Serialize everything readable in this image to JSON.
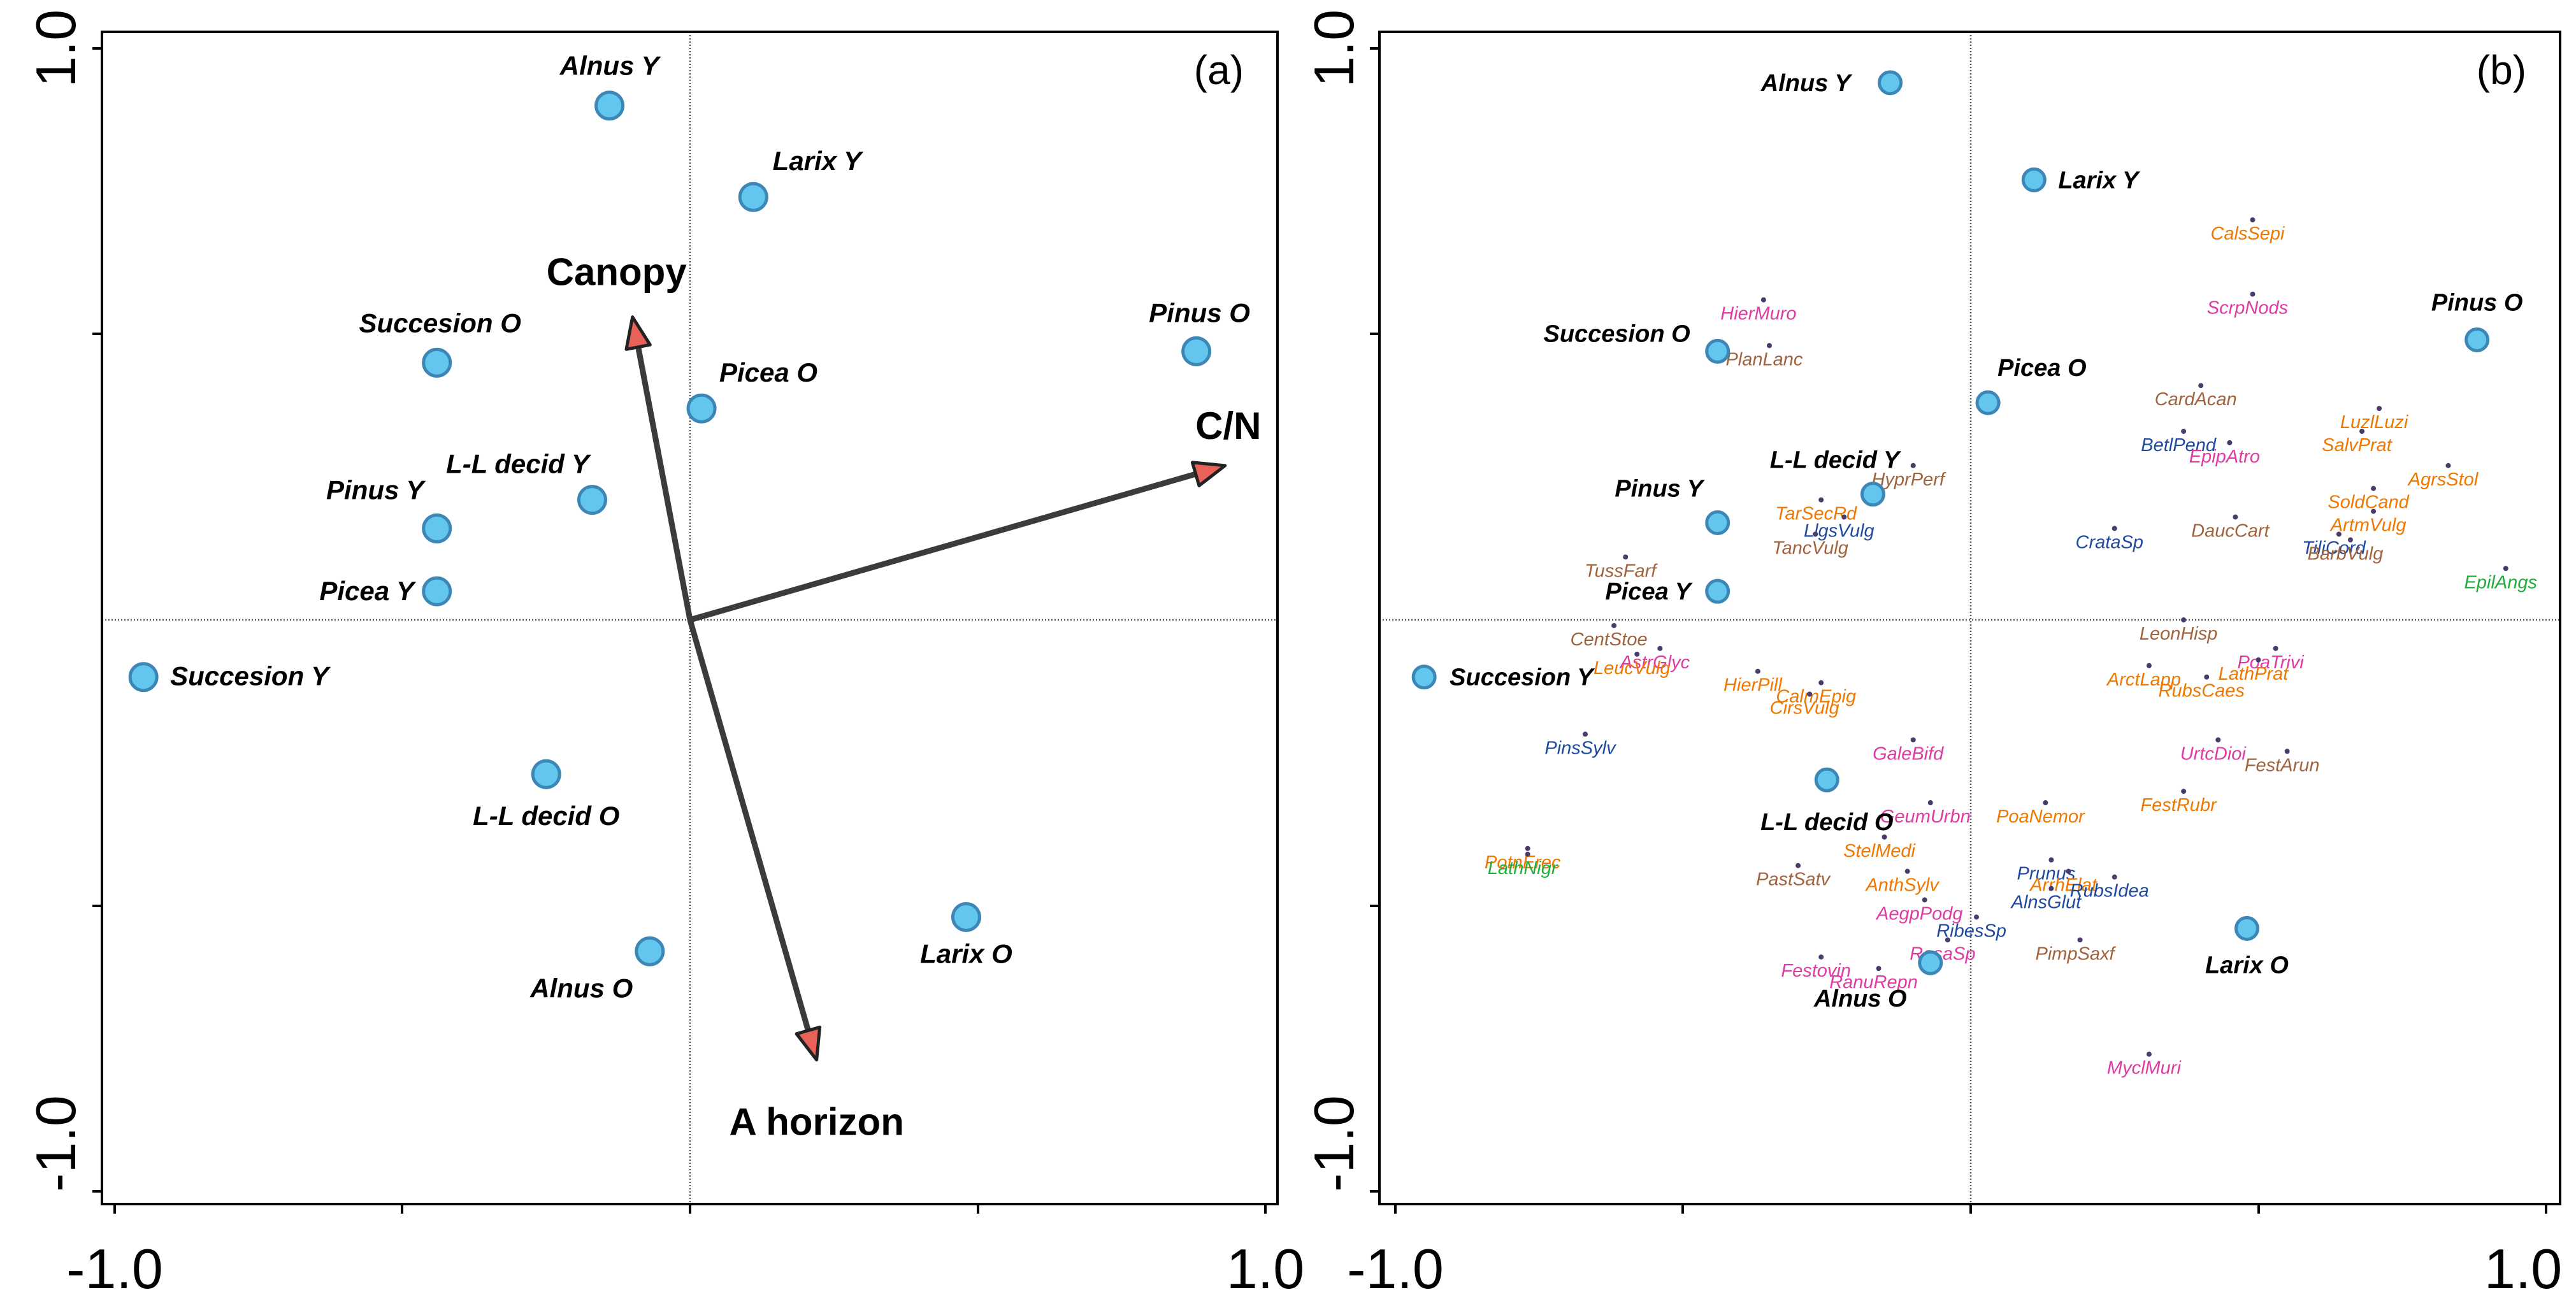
{
  "chart_data": [
    {
      "type": "scatter",
      "panel_label": "(a)",
      "title": "",
      "xlabel": "",
      "ylabel": "",
      "xlim": [
        -1.0,
        1.0
      ],
      "ylim": [
        -1.0,
        1.0
      ],
      "x_tick_labels": [
        {
          "value": -1.0,
          "label": "-1.0"
        },
        {
          "value": 1.0,
          "label": "1.0"
        }
      ],
      "y_tick_labels": [
        {
          "value": 1.0,
          "label": "1.0"
        },
        {
          "value": -1.0,
          "label": "-1.0"
        }
      ],
      "sites": [
        {
          "name": "Alnus Y",
          "x": -0.14,
          "y": 0.9
        },
        {
          "name": "Larix Y",
          "x": 0.11,
          "y": 0.74
        },
        {
          "name": "Succesion O",
          "x": -0.44,
          "y": 0.45
        },
        {
          "name": "Pinus O",
          "x": 0.88,
          "y": 0.47
        },
        {
          "name": "Picea O",
          "x": 0.02,
          "y": 0.37
        },
        {
          "name": "L-L decid Y",
          "x": -0.17,
          "y": 0.21
        },
        {
          "name": "Pinus Y",
          "x": -0.44,
          "y": 0.16
        },
        {
          "name": "Picea Y",
          "x": -0.44,
          "y": 0.05
        },
        {
          "name": "Succesion Y",
          "x": -0.95,
          "y": -0.1
        },
        {
          "name": "L-L decid O",
          "x": -0.25,
          "y": -0.27
        },
        {
          "name": "Alnus O",
          "x": -0.07,
          "y": -0.58
        },
        {
          "name": "Larix O",
          "x": 0.48,
          "y": -0.52
        }
      ],
      "env_vectors": [
        {
          "name": "Canopy",
          "x": -0.1,
          "y": 0.53
        },
        {
          "name": "C/N",
          "x": 0.93,
          "y": 0.27
        },
        {
          "name": "A horizon",
          "x": 0.22,
          "y": -0.77
        }
      ]
    },
    {
      "type": "scatter",
      "panel_label": "(b)",
      "title": "",
      "xlabel": "",
      "ylabel": "",
      "xlim": [
        -1.0,
        1.0
      ],
      "ylim": [
        -1.0,
        1.0
      ],
      "x_tick_labels": [
        {
          "value": -1.0,
          "label": "-1.0"
        },
        {
          "value": 1.0,
          "label": "1.0"
        }
      ],
      "y_tick_labels": [
        {
          "value": 1.0,
          "label": "1.0"
        },
        {
          "value": -1.0,
          "label": "-1.0"
        }
      ],
      "sites": [
        {
          "name": "Alnus Y",
          "x": -0.14,
          "y": 0.94
        },
        {
          "name": "Larix Y",
          "x": 0.11,
          "y": 0.77
        },
        {
          "name": "Succesion O",
          "x": -0.44,
          "y": 0.47
        },
        {
          "name": "Pinus O",
          "x": 0.88,
          "y": 0.49
        },
        {
          "name": "Picea O",
          "x": 0.03,
          "y": 0.38
        },
        {
          "name": "L-L decid Y",
          "x": -0.17,
          "y": 0.22
        },
        {
          "name": "Pinus Y",
          "x": -0.44,
          "y": 0.17
        },
        {
          "name": "Picea Y",
          "x": -0.44,
          "y": 0.05
        },
        {
          "name": "Succesion Y",
          "x": -0.95,
          "y": -0.1
        },
        {
          "name": "L-L decid O",
          "x": -0.25,
          "y": -0.28
        },
        {
          "name": "Alnus O",
          "x": -0.07,
          "y": -0.6
        },
        {
          "name": "Larix O",
          "x": 0.48,
          "y": -0.54
        }
      ],
      "species_colors": {
        "brown": "#a0633d",
        "orange": "#f07800",
        "magenta": "#de3ca2",
        "blue": "#1f4aa0",
        "green": "#1fae3c"
      },
      "species": [
        {
          "name": "CalsSepi",
          "x": 0.49,
          "y": 0.7,
          "color": "orange"
        },
        {
          "name": "HierMuro",
          "x": -0.36,
          "y": 0.56,
          "color": "magenta"
        },
        {
          "name": "ScrpNods",
          "x": 0.49,
          "y": 0.57,
          "color": "magenta"
        },
        {
          "name": "PlanLanc",
          "x": -0.35,
          "y": 0.48,
          "color": "brown"
        },
        {
          "name": "CardAcan",
          "x": 0.4,
          "y": 0.41,
          "color": "brown"
        },
        {
          "name": "LuzlLuzi",
          "x": 0.71,
          "y": 0.37,
          "color": "orange"
        },
        {
          "name": "BetlPend",
          "x": 0.37,
          "y": 0.33,
          "color": "blue"
        },
        {
          "name": "SalvPrat",
          "x": 0.68,
          "y": 0.33,
          "color": "orange"
        },
        {
          "name": "EpipAtro",
          "x": 0.45,
          "y": 0.31,
          "color": "magenta"
        },
        {
          "name": "AgrsStol",
          "x": 0.83,
          "y": 0.27,
          "color": "orange"
        },
        {
          "name": "HyprPerf",
          "x": -0.1,
          "y": 0.27,
          "color": "brown"
        },
        {
          "name": "TarSecRd",
          "x": -0.26,
          "y": 0.21,
          "color": "orange"
        },
        {
          "name": "DaucCart",
          "x": 0.46,
          "y": 0.18,
          "color": "brown"
        },
        {
          "name": "SoldCand",
          "x": 0.7,
          "y": 0.23,
          "color": "orange"
        },
        {
          "name": "CrataSp",
          "x": 0.25,
          "y": 0.16,
          "color": "blue"
        },
        {
          "name": "LlgsVulg",
          "x": -0.22,
          "y": 0.18,
          "color": "blue"
        },
        {
          "name": "ArtmVulg",
          "x": 0.7,
          "y": 0.19,
          "color": "orange"
        },
        {
          "name": "TiliCord",
          "x": 0.64,
          "y": 0.15,
          "color": "blue"
        },
        {
          "name": "TancVulg",
          "x": -0.27,
          "y": 0.15,
          "color": "brown"
        },
        {
          "name": "BarbVulg",
          "x": 0.66,
          "y": 0.14,
          "color": "brown"
        },
        {
          "name": "TussFarf",
          "x": -0.6,
          "y": 0.11,
          "color": "brown"
        },
        {
          "name": "EpilAngs",
          "x": 0.93,
          "y": 0.09,
          "color": "green"
        },
        {
          "name": "LeonHisp",
          "x": 0.37,
          "y": 0.0,
          "color": "brown"
        },
        {
          "name": "CentStoe",
          "x": -0.62,
          "y": -0.01,
          "color": "brown"
        },
        {
          "name": "AstrGlyc",
          "x": -0.54,
          "y": -0.05,
          "color": "magenta"
        },
        {
          "name": "PoaTrivi",
          "x": 0.53,
          "y": -0.05,
          "color": "magenta"
        },
        {
          "name": "LeucVulg",
          "x": -0.58,
          "y": -0.06,
          "color": "orange"
        },
        {
          "name": "HierPill",
          "x": -0.37,
          "y": -0.09,
          "color": "orange"
        },
        {
          "name": "ArctLapp",
          "x": 0.31,
          "y": -0.08,
          "color": "orange"
        },
        {
          "name": "LathPrat",
          "x": 0.5,
          "y": -0.07,
          "color": "orange"
        },
        {
          "name": "CalmEpig",
          "x": -0.26,
          "y": -0.11,
          "color": "orange"
        },
        {
          "name": "RubsCaes",
          "x": 0.41,
          "y": -0.1,
          "color": "orange"
        },
        {
          "name": "CirsVulg",
          "x": -0.28,
          "y": -0.13,
          "color": "orange"
        },
        {
          "name": "PinsSylv",
          "x": -0.67,
          "y": -0.2,
          "color": "blue"
        },
        {
          "name": "GaleBifd",
          "x": -0.1,
          "y": -0.21,
          "color": "magenta"
        },
        {
          "name": "UrtcDioi",
          "x": 0.43,
          "y": -0.21,
          "color": "magenta"
        },
        {
          "name": "FestArun",
          "x": 0.55,
          "y": -0.23,
          "color": "brown"
        },
        {
          "name": "GeumUrbn",
          "x": -0.07,
          "y": -0.32,
          "color": "magenta"
        },
        {
          "name": "PoaNemor",
          "x": 0.13,
          "y": -0.32,
          "color": "orange"
        },
        {
          "name": "FestRubr",
          "x": 0.37,
          "y": -0.3,
          "color": "orange"
        },
        {
          "name": "PotnErec",
          "x": -0.77,
          "y": -0.4,
          "color": "orange"
        },
        {
          "name": "StelMedi",
          "x": -0.15,
          "y": -0.38,
          "color": "orange"
        },
        {
          "name": "Prunus",
          "x": 0.14,
          "y": -0.42,
          "color": "blue"
        },
        {
          "name": "LathNigr",
          "x": -0.77,
          "y": -0.41,
          "color": "green"
        },
        {
          "name": "PastSatv",
          "x": -0.3,
          "y": -0.43,
          "color": "brown"
        },
        {
          "name": "AnthSylv",
          "x": -0.11,
          "y": -0.44,
          "color": "orange"
        },
        {
          "name": "ArrhElat",
          "x": 0.17,
          "y": -0.44,
          "color": "orange"
        },
        {
          "name": "RubsIdea",
          "x": 0.25,
          "y": -0.45,
          "color": "blue"
        },
        {
          "name": "AlnsGlut",
          "x": 0.14,
          "y": -0.47,
          "color": "blue"
        },
        {
          "name": "AegpPodg",
          "x": -0.08,
          "y": -0.49,
          "color": "magenta"
        },
        {
          "name": "RibesSp",
          "x": 0.01,
          "y": -0.52,
          "color": "blue"
        },
        {
          "name": "RosaSp",
          "x": -0.04,
          "y": -0.56,
          "color": "magenta"
        },
        {
          "name": "PimpSaxf",
          "x": 0.19,
          "y": -0.56,
          "color": "brown"
        },
        {
          "name": "Festovin",
          "x": -0.26,
          "y": -0.59,
          "color": "magenta"
        },
        {
          "name": "RanuRepn",
          "x": -0.16,
          "y": -0.61,
          "color": "magenta"
        },
        {
          "name": "MyclMuri",
          "x": 0.31,
          "y": -0.76,
          "color": "magenta"
        }
      ]
    }
  ]
}
